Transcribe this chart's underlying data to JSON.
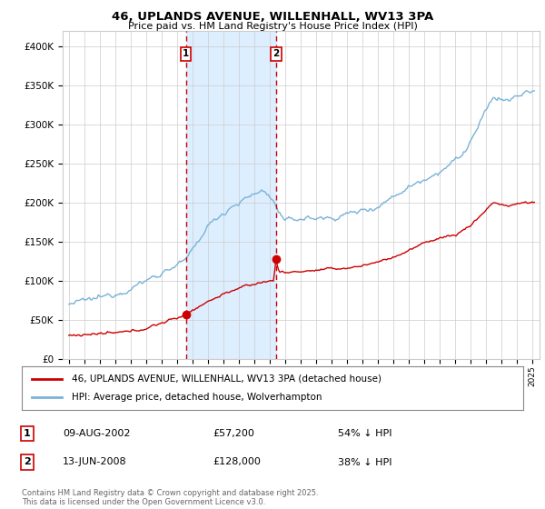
{
  "title": "46, UPLANDS AVENUE, WILLENHALL, WV13 3PA",
  "subtitle": "Price paid vs. HM Land Registry's House Price Index (HPI)",
  "legend_line1": "46, UPLANDS AVENUE, WILLENHALL, WV13 3PA (detached house)",
  "legend_line2": "HPI: Average price, detached house, Wolverhampton",
  "sale1_date": "09-AUG-2002",
  "sale1_price": 57200,
  "sale1_label": "54% ↓ HPI",
  "sale2_date": "13-JUN-2008",
  "sale2_price": 128000,
  "sale2_label": "38% ↓ HPI",
  "footer": "Contains HM Land Registry data © Crown copyright and database right 2025.\nThis data is licensed under the Open Government Licence v3.0.",
  "hpi_color": "#7ab3d8",
  "property_color": "#cc0000",
  "vline_color": "#cc0000",
  "shade_color": "#ddeeff",
  "background_color": "#ffffff",
  "grid_color": "#cccccc",
  "ylim": [
    0,
    420000
  ],
  "sale1_x": 2002.58,
  "sale2_x": 2008.42
}
